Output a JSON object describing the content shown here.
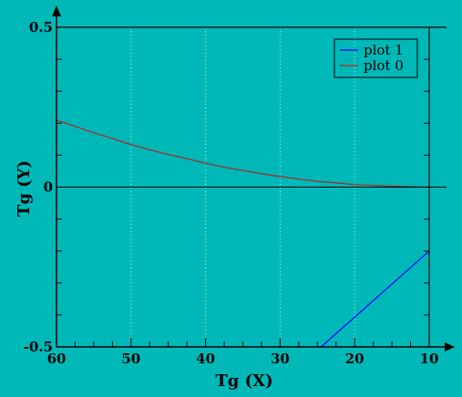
{
  "chart_data": {
    "type": "line",
    "xlabel": "Tg (X)",
    "ylabel": "Tg (Y)",
    "xlim": [
      60,
      10
    ],
    "ylim": [
      -0.5,
      0.5
    ],
    "x_ticks": [
      "60",
      "50",
      "40",
      "30",
      "20",
      "10"
    ],
    "y_ticks": [
      "-0.5",
      "0",
      "0.5"
    ],
    "grid": true,
    "legend_position": "top-right",
    "series": [
      {
        "name": "plot 1",
        "color": "#0000ff",
        "points": [
          [
            24.5,
            -0.5
          ],
          [
            10,
            -0.2
          ]
        ]
      },
      {
        "name": "plot 0",
        "color": "#b22222",
        "points": [
          [
            60,
            0.21
          ],
          [
            57.5,
            0.19
          ],
          [
            55,
            0.17
          ],
          [
            52.5,
            0.152
          ],
          [
            50,
            0.133
          ],
          [
            47.5,
            0.117
          ],
          [
            45,
            0.102
          ],
          [
            42.5,
            0.089
          ],
          [
            40,
            0.075
          ],
          [
            37.5,
            0.062
          ],
          [
            35,
            0.052
          ],
          [
            32.5,
            0.042
          ],
          [
            30,
            0.033
          ],
          [
            27.5,
            0.025
          ],
          [
            25,
            0.018
          ],
          [
            22.5,
            0.013
          ],
          [
            20,
            0.008
          ],
          [
            17.5,
            0.005
          ],
          [
            15,
            0.003
          ],
          [
            12.5,
            0.001
          ],
          [
            10,
            0.0
          ]
        ]
      }
    ]
  }
}
